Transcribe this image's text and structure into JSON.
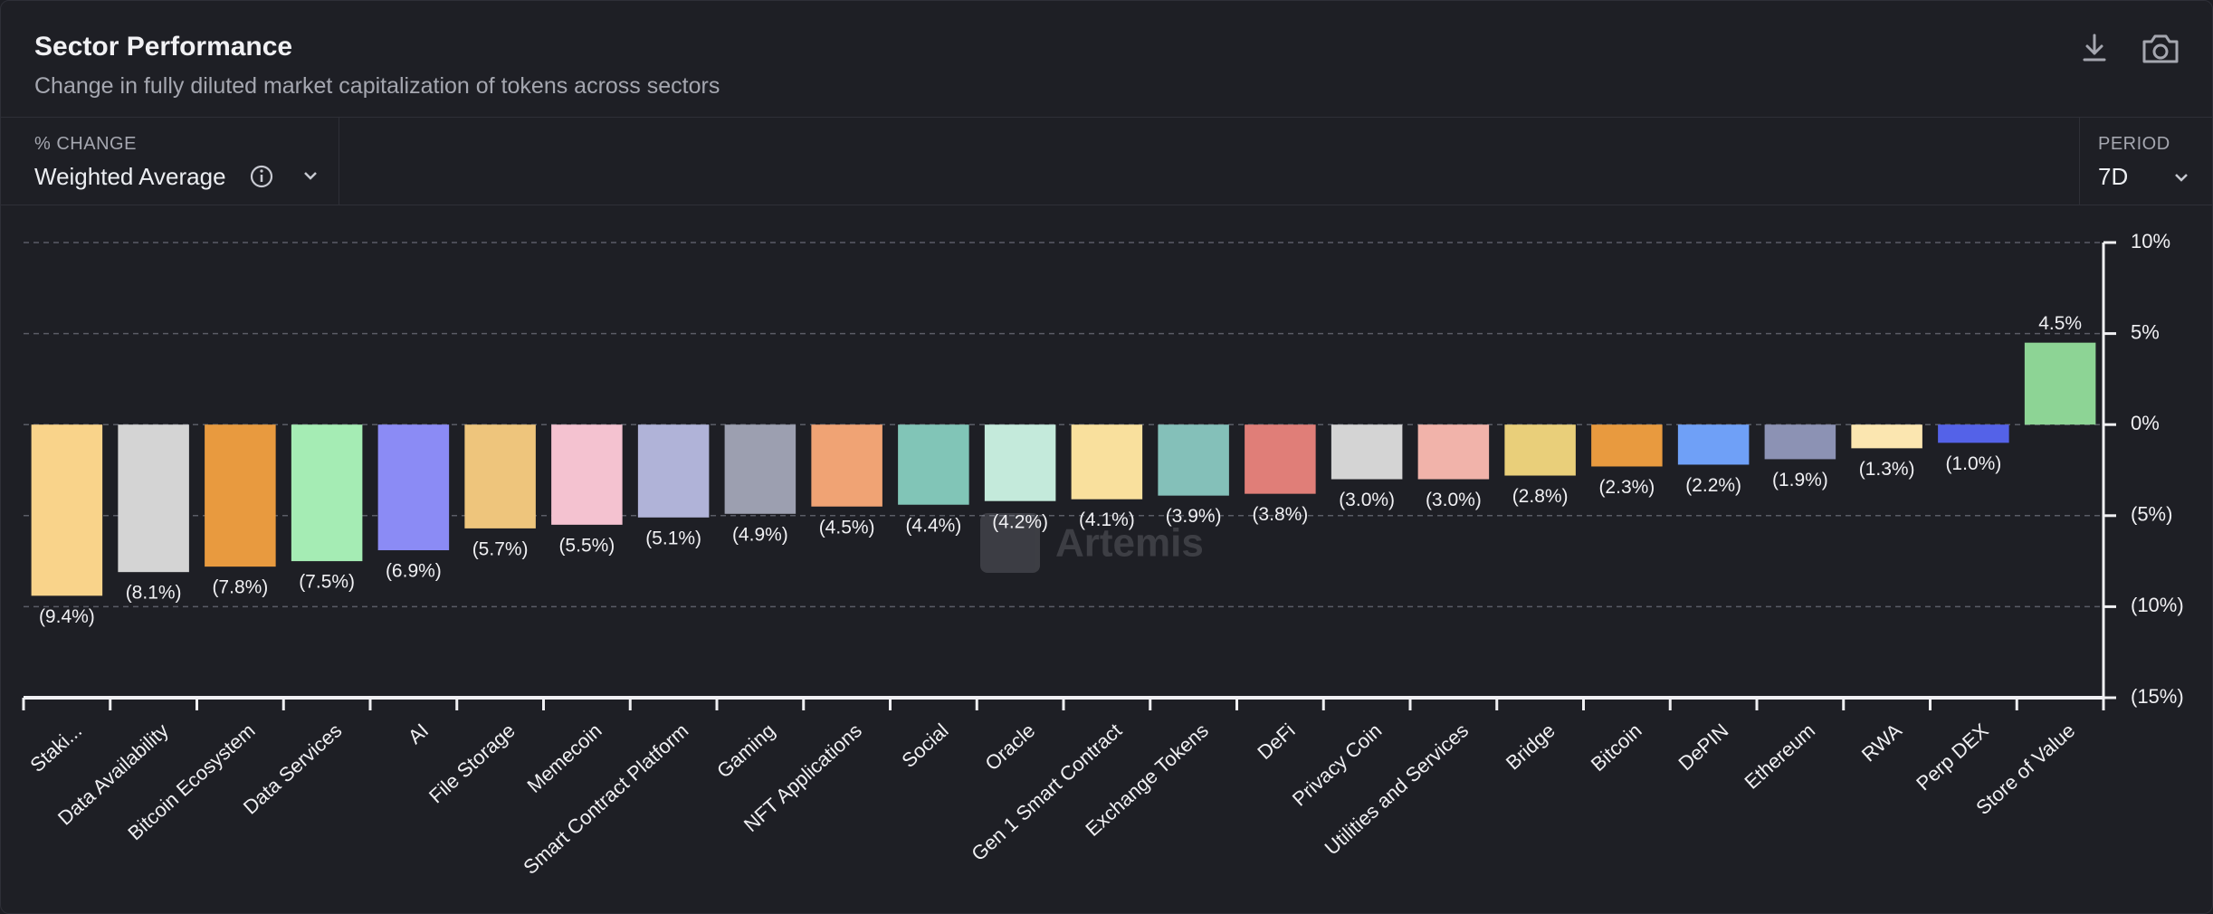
{
  "header": {
    "title": "Sector Performance",
    "subtitle": "Change in fully diluted market capitalization of tokens across sectors"
  },
  "controls": {
    "metric_label": "% CHANGE",
    "metric": "Weighted Average",
    "period_label": "PERIOD",
    "period": "7D"
  },
  "chart_data": {
    "type": "bar",
    "watermark": "Artemis",
    "categories": [
      "Staki...",
      "Data Availability",
      "Bitcoin Ecosystem",
      "Data Services",
      "AI",
      "File Storage",
      "Memecoin",
      "Smart Contract Platform",
      "Gaming",
      "NFT Applications",
      "Social",
      "Oracle",
      "Gen 1 Smart Contract",
      "Exchange Tokens",
      "DeFi",
      "Privacy Coin",
      "Utilities and Services",
      "Bridge",
      "Bitcoin",
      "DePIN",
      "Ethereum",
      "RWA",
      "Perp DEX",
      "Store of Value"
    ],
    "values": [
      -9.4,
      -8.1,
      -7.8,
      -7.5,
      -6.9,
      -5.7,
      -5.5,
      -5.1,
      -4.9,
      -4.5,
      -4.4,
      -4.2,
      -4.1,
      -3.9,
      -3.8,
      -3.0,
      -3.0,
      -2.8,
      -2.3,
      -2.2,
      -1.9,
      -1.3,
      -1.0,
      4.5
    ],
    "value_labels": [
      "(9.4%)",
      "(8.1%)",
      "(7.8%)",
      "(7.5%)",
      "(6.9%)",
      "(5.7%)",
      "(5.5%)",
      "(5.1%)",
      "(4.9%)",
      "(4.5%)",
      "(4.4%)",
      "(4.2%)",
      "(4.1%)",
      "(3.9%)",
      "(3.8%)",
      "(3.0%)",
      "(3.0%)",
      "(2.8%)",
      "(2.3%)",
      "(2.2%)",
      "(1.9%)",
      "(1.3%)",
      "(1.0%)",
      "4.5%"
    ],
    "colors": [
      "#f9d38a",
      "#d4d4d4",
      "#e89a3f",
      "#a5ecb4",
      "#8b8bf5",
      "#eec57c",
      "#f4c2d0",
      "#b0b3d8",
      "#9c9fb0",
      "#f0a374",
      "#81c5b7",
      "#c4eadb",
      "#f9e09d",
      "#84c0b9",
      "#e07e78",
      "#d4d4d4",
      "#f1b3aa",
      "#e9cf7a",
      "#e89a3f",
      "#6fa0f7",
      "#8c92b4",
      "#fbe6b0",
      "#5462e8",
      "#8dd495"
    ],
    "ylim": [
      -15,
      10
    ],
    "yticks": [
      {
        "value": 10,
        "label": "10%"
      },
      {
        "value": 5,
        "label": "5%"
      },
      {
        "value": 0,
        "label": "0%"
      },
      {
        "value": -5,
        "label": "(5%)"
      },
      {
        "value": -10,
        "label": "(10%)"
      },
      {
        "value": -15,
        "label": "(15%)"
      }
    ],
    "grid": true
  }
}
